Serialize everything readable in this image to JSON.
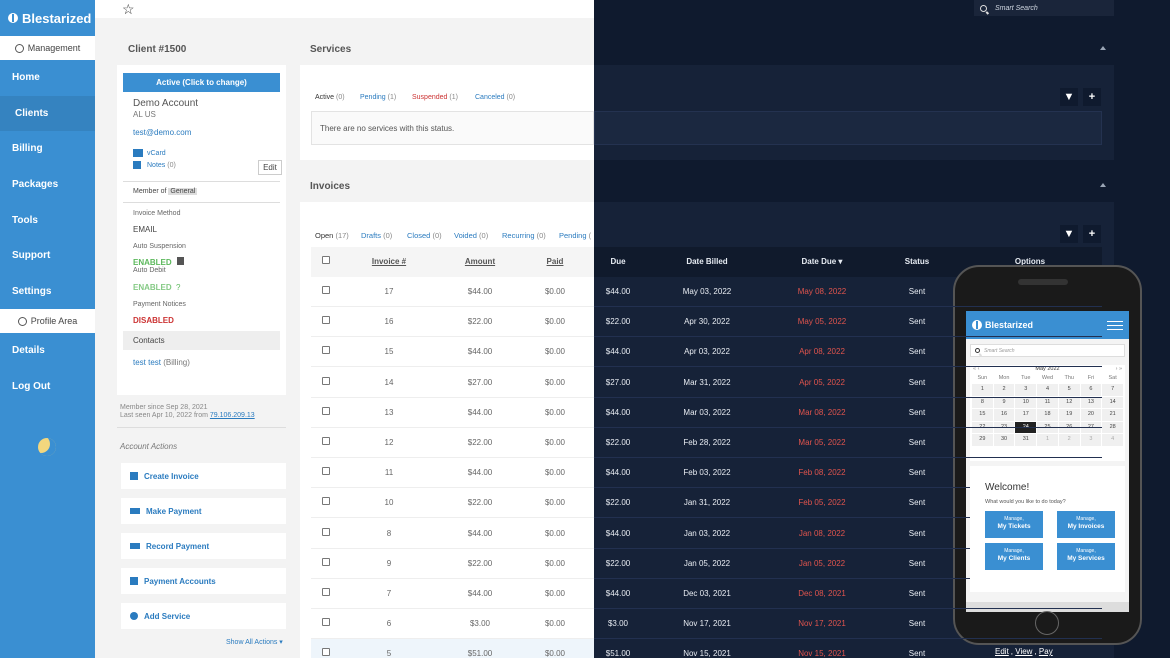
{
  "app": {
    "brand": "Blestarized"
  },
  "sidebar": {
    "management": "Management",
    "profile_area": "Profile Area",
    "items": [
      "Home",
      "Clients",
      "Billing",
      "Packages",
      "Tools",
      "Support",
      "Settings"
    ],
    "bottom_items": [
      "Details",
      "Log Out"
    ]
  },
  "search": {
    "placeholder": "Smart Search"
  },
  "client": {
    "title": "Client #1500",
    "status_button": "Active (Click to change)",
    "account": "Demo Account",
    "location": "AL US",
    "email": "test@demo.com",
    "vcard": "vCard",
    "notes_label": "Notes",
    "notes_count": "(0)",
    "edit": "Edit",
    "member_of_label": "Member of",
    "member_of_group": "General",
    "invoice_method_label": "Invoice Method",
    "invoice_method": "EMAIL",
    "auto_suspension_label": "Auto Suspension",
    "auto_suspension": "ENABLED",
    "auto_debit_label": "Auto Debit",
    "auto_debit": "ENABLED",
    "auto_debit_help": "?",
    "payment_notices_label": "Payment Notices",
    "payment_notices": "DISABLED",
    "contacts_title": "Contacts",
    "contact_name": "test test",
    "contact_role": "(Billing)",
    "member_since": "Member since Sep 28, 2021",
    "last_seen": "Last seen Apr 10, 2022 from",
    "last_ip": "79.106.209.13"
  },
  "actions": {
    "title": "Account Actions",
    "items": [
      "Create Invoice",
      "Make Payment",
      "Record Payment",
      "Payment Accounts",
      "Add Service"
    ],
    "show_all": "Show All Actions ▾"
  },
  "services": {
    "title": "Services",
    "filters": [
      {
        "label": "Active",
        "count": "(0)"
      },
      {
        "label": "Pending",
        "count": "(1)"
      },
      {
        "label": "Suspended",
        "count": "(1)"
      },
      {
        "label": "Canceled",
        "count": "(0)"
      }
    ],
    "empty": "There are no services with this status."
  },
  "invoices": {
    "title": "Invoices",
    "filters": [
      {
        "label": "Open",
        "count": "(17)"
      },
      {
        "label": "Drafts",
        "count": "(0)"
      },
      {
        "label": "Closed",
        "count": "(0)"
      },
      {
        "label": "Voided",
        "count": "(0)"
      },
      {
        "label": "Recurring",
        "count": "(0)"
      },
      {
        "label": "Pending",
        "count": "("
      }
    ],
    "columns": [
      "Invoice #",
      "Amount",
      "Paid",
      "Due",
      "Date Billed",
      "Date Due ▾",
      "Status",
      "Options"
    ],
    "rows": [
      {
        "num": "17",
        "amount": "$44.00",
        "paid": "$0.00",
        "due": "$44.00",
        "billed": "May 03, 2022",
        "date_due": "May 08, 2022",
        "status": "Sent"
      },
      {
        "num": "16",
        "amount": "$22.00",
        "paid": "$0.00",
        "due": "$22.00",
        "billed": "Apr 30, 2022",
        "date_due": "May 05, 2022",
        "status": "Sent"
      },
      {
        "num": "15",
        "amount": "$44.00",
        "paid": "$0.00",
        "due": "$44.00",
        "billed": "Apr 03, 2022",
        "date_due": "Apr 08, 2022",
        "status": "Sent"
      },
      {
        "num": "14",
        "amount": "$27.00",
        "paid": "$0.00",
        "due": "$27.00",
        "billed": "Mar 31, 2022",
        "date_due": "Apr 05, 2022",
        "status": "Sent"
      },
      {
        "num": "13",
        "amount": "$44.00",
        "paid": "$0.00",
        "due": "$44.00",
        "billed": "Mar 03, 2022",
        "date_due": "Mar 08, 2022",
        "status": "Sent"
      },
      {
        "num": "12",
        "amount": "$22.00",
        "paid": "$0.00",
        "due": "$22.00",
        "billed": "Feb 28, 2022",
        "date_due": "Mar 05, 2022",
        "status": "Sent"
      },
      {
        "num": "11",
        "amount": "$44.00",
        "paid": "$0.00",
        "due": "$44.00",
        "billed": "Feb 03, 2022",
        "date_due": "Feb 08, 2022",
        "status": "Sent"
      },
      {
        "num": "10",
        "amount": "$22.00",
        "paid": "$0.00",
        "due": "$22.00",
        "billed": "Jan 31, 2022",
        "date_due": "Feb 05, 2022",
        "status": "Sent"
      },
      {
        "num": "8",
        "amount": "$44.00",
        "paid": "$0.00",
        "due": "$44.00",
        "billed": "Jan 03, 2022",
        "date_due": "Jan 08, 2022",
        "status": "Sent"
      },
      {
        "num": "9",
        "amount": "$22.00",
        "paid": "$0.00",
        "due": "$22.00",
        "billed": "Jan 05, 2022",
        "date_due": "Jan 05, 2022",
        "status": "Sent"
      },
      {
        "num": "7",
        "amount": "$44.00",
        "paid": "$0.00",
        "due": "$44.00",
        "billed": "Dec 03, 2021",
        "date_due": "Dec 08, 2021",
        "status": "Sent"
      },
      {
        "num": "6",
        "amount": "$3.00",
        "paid": "$0.00",
        "due": "$3.00",
        "billed": "Nov 17, 2021",
        "date_due": "Nov 17, 2021",
        "status": "Sent"
      },
      {
        "num": "5",
        "amount": "$51.00",
        "paid": "$0.00",
        "due": "$51.00",
        "billed": "Nov 15, 2021",
        "date_due": "Nov 15, 2021",
        "status": "Sent"
      }
    ],
    "row_options": [
      "Edit",
      "View",
      "Pay"
    ]
  },
  "phone": {
    "brand": "Blestarized",
    "search_placeholder": "Smart Search",
    "calendar_month": "May 2022",
    "calendar_nav_prev": "« ‹",
    "calendar_nav_next": "› »",
    "weekdays": [
      "Sun",
      "Mon",
      "Tue",
      "Wed",
      "Thu",
      "Fri",
      "Sat"
    ],
    "days": [
      "1",
      "2",
      "3",
      "4",
      "5",
      "6",
      "7",
      "8",
      "9",
      "10",
      "11",
      "12",
      "13",
      "14",
      "15",
      "16",
      "17",
      "18",
      "19",
      "20",
      "21",
      "22",
      "23",
      "24",
      "25",
      "26",
      "27",
      "28",
      "29",
      "30",
      "31",
      "1",
      "2",
      "3",
      "4"
    ],
    "selected_day": "24",
    "welcome": "Welcome!",
    "welcome_sub": "What would you like to do today?",
    "buttons": [
      {
        "top": "Manage,",
        "main": "My Tickets"
      },
      {
        "top": "Manage,",
        "main": "My Invoices"
      },
      {
        "top": "Manage,",
        "main": "My Clients"
      },
      {
        "top": "Manage,",
        "main": "My Services"
      }
    ]
  },
  "colors": {
    "accent": "#3a8fd2",
    "dark_bg": "#0f1a2e",
    "danger": "#e0544d",
    "success": "#5cb85c"
  }
}
